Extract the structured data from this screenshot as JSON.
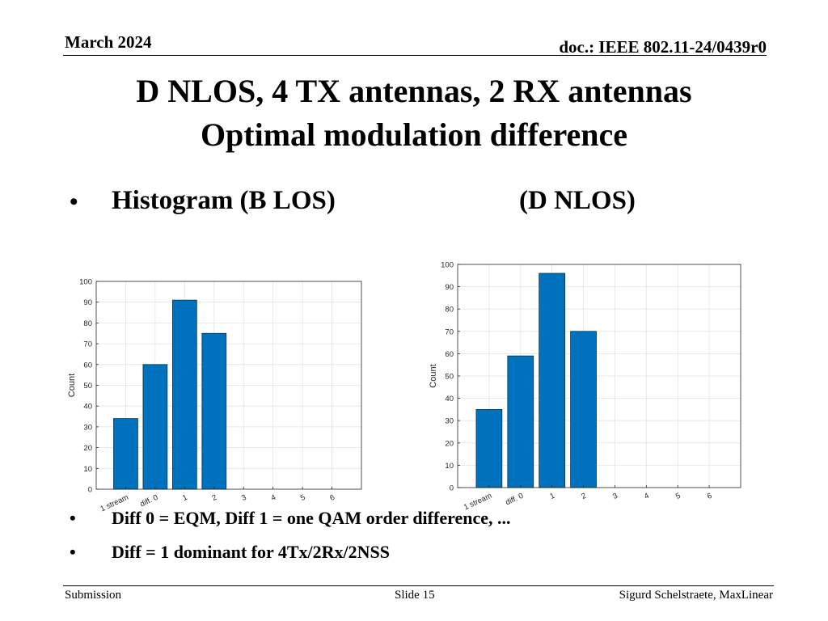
{
  "header": {
    "date": "March 2024",
    "doc": "doc.: IEEE 802.11-24/0439r0"
  },
  "title": {
    "line1": "D NLOS, 4 TX antennas, 2 RX antennas",
    "line2": "Optimal modulation difference"
  },
  "bullets": {
    "histogram_left": "Histogram (B LOS)",
    "histogram_right": "(D NLOS)",
    "note1": "Diff 0 = EQM, Diff 1 = one QAM order difference, ...",
    "note2": "Diff = 1 dominant for 4Tx/2Rx/2NSS"
  },
  "footer": {
    "left": "Submission",
    "center": "Slide 15",
    "right": "Sigurd Schelstraete, MaxLinear"
  },
  "colors": {
    "bar_fill": "#0072BD",
    "bar_edge": "#00324f",
    "grid": "#e3e3e3",
    "axis": "#262626"
  },
  "chart_data": [
    {
      "type": "bar",
      "categories": [
        "1 stream",
        "diff. 0",
        "1",
        "2",
        "3",
        "4",
        "5",
        "6"
      ],
      "values": [
        34,
        60,
        91,
        75,
        0,
        0,
        0,
        0
      ],
      "ylabel": "Count",
      "ylim": [
        0,
        100
      ],
      "yticks": [
        0,
        10,
        20,
        30,
        40,
        50,
        60,
        70,
        80,
        90,
        100
      ],
      "grid": true
    },
    {
      "type": "bar",
      "categories": [
        "1 stream",
        "diff. 0",
        "1",
        "2",
        "3",
        "4",
        "5",
        "6"
      ],
      "values": [
        35,
        59,
        96,
        70,
        0,
        0,
        0,
        0
      ],
      "ylabel": "Count",
      "ylim": [
        0,
        100
      ],
      "yticks": [
        0,
        10,
        20,
        30,
        40,
        50,
        60,
        70,
        80,
        90,
        100
      ],
      "grid": true
    }
  ]
}
